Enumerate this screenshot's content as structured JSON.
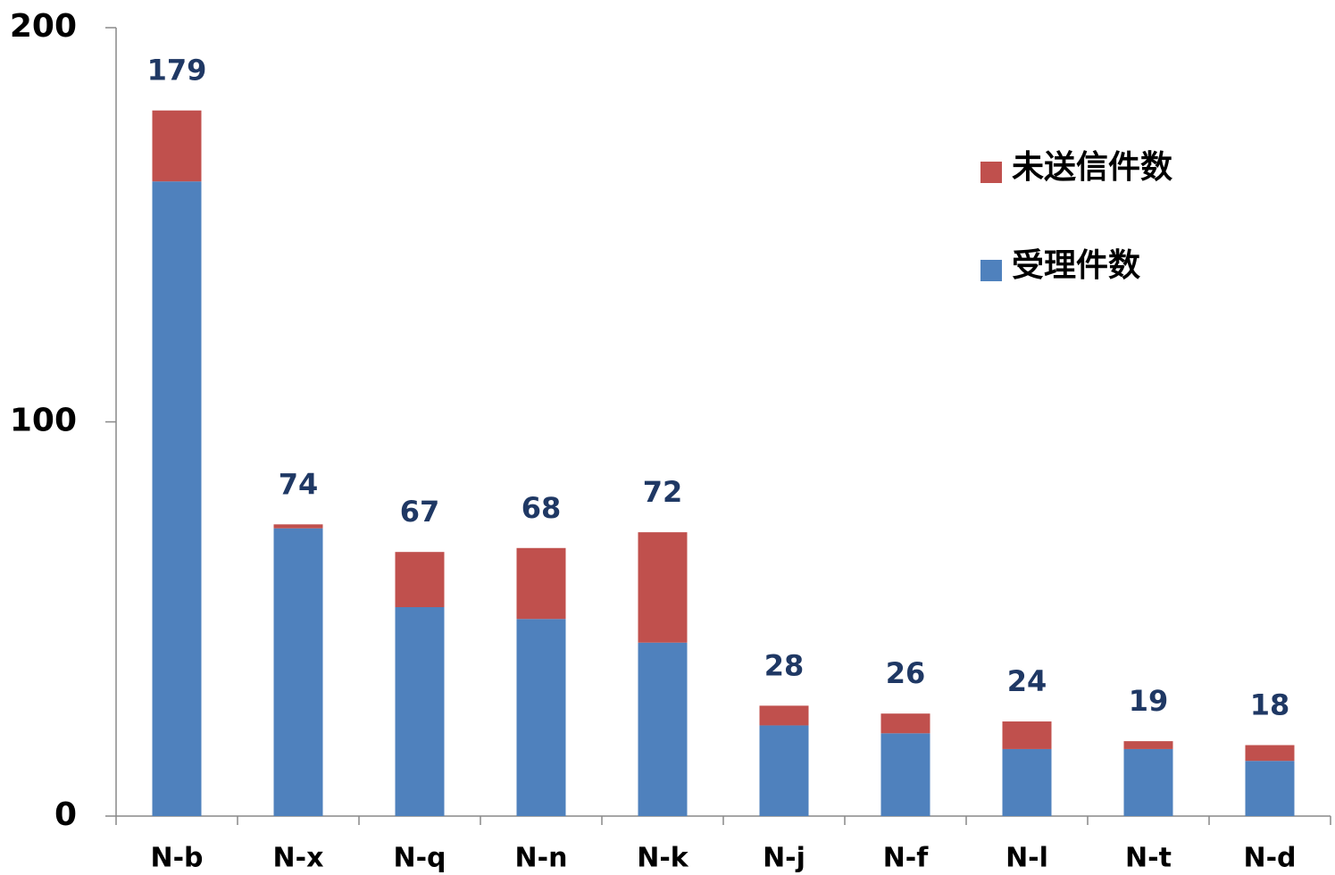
{
  "chart_data": {
    "type": "stacked_bar",
    "categories": [
      "N-b",
      "N-x",
      "N-q",
      "N-n",
      "N-k",
      "N-j",
      "N-f",
      "N-l",
      "N-t",
      "N-d"
    ],
    "series": [
      {
        "name": "受理件数",
        "color": "#4f81bd",
        "values": [
          161,
          73,
          53,
          50,
          44,
          23,
          21,
          17,
          17,
          14
        ]
      },
      {
        "name": "未送信件数",
        "color": "#c0504d",
        "values": [
          18,
          1,
          14,
          18,
          28,
          5,
          5,
          7,
          2,
          4
        ]
      }
    ],
    "totals": [
      179,
      74,
      67,
      68,
      72,
      28,
      26,
      24,
      19,
      18
    ],
    "ylim": [
      0,
      200
    ],
    "yticks": [
      0,
      100,
      200
    ],
    "grid": false,
    "legend": "upper right"
  }
}
